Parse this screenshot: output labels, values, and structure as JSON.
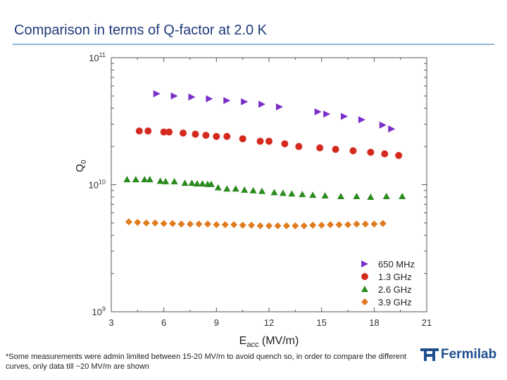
{
  "slide": {
    "title": "Comparison in terms of Q-factor at 2.0 K",
    "footnote": "*Some measurements were admin limited between 15-20 MV/m to avoid quench so, in order to compare the different curves, only data till ~20 MV/m are shown",
    "logo_text": "Fermilab",
    "logo_icon": "fermilab-logo-icon",
    "title_color": "#1f3a7a",
    "rule_color": "#8fb5d6"
  },
  "chart_data": {
    "type": "scatter",
    "title": "",
    "xlabel_main": "E",
    "xlabel_sub": "acc",
    "xlabel_unit": " (MV/m)",
    "ylabel_main": "Q",
    "ylabel_sub": "0",
    "xlim": [
      3,
      21
    ],
    "ylim": [
      1000000000.0,
      100000000000.0
    ],
    "yscale": "log",
    "x_ticks": [
      "3",
      "6",
      "9",
      "12",
      "15",
      "18",
      "21"
    ],
    "y_ticks": [
      {
        "base": "10",
        "exp": "9",
        "value": 1000000000.0
      },
      {
        "base": "10",
        "exp": "10",
        "value": 10000000000.0
      },
      {
        "base": "10",
        "exp": "11",
        "value": 100000000000.0
      }
    ],
    "grid": false,
    "legend_position": "bottom-right",
    "series": [
      {
        "name": "650 MHz",
        "marker": "triangle-right",
        "color": "#7b2fc9",
        "points": [
          [
            5.6,
            52000000000.0
          ],
          [
            6.6,
            50000000000.0
          ],
          [
            7.6,
            49000000000.0
          ],
          [
            8.6,
            47500000000.0
          ],
          [
            9.6,
            46000000000.0
          ],
          [
            10.6,
            45000000000.0
          ],
          [
            11.6,
            43000000000.0
          ],
          [
            12.6,
            41000000000.0
          ],
          [
            14.8,
            37500000000.0
          ],
          [
            15.3,
            36000000000.0
          ],
          [
            16.3,
            34500000000.0
          ],
          [
            17.3,
            32500000000.0
          ],
          [
            18.5,
            29500000000.0
          ],
          [
            19.0,
            27500000000.0
          ]
        ]
      },
      {
        "name": "1.3 GHz",
        "marker": "circle",
        "color": "#d42a1e",
        "points": [
          [
            4.6,
            26500000000.0
          ],
          [
            5.1,
            26500000000.0
          ],
          [
            6.0,
            26000000000.0
          ],
          [
            6.3,
            26000000000.0
          ],
          [
            7.1,
            25500000000.0
          ],
          [
            7.8,
            25000000000.0
          ],
          [
            8.4,
            24500000000.0
          ],
          [
            9.0,
            24000000000.0
          ],
          [
            9.6,
            24000000000.0
          ],
          [
            10.5,
            23000000000.0
          ],
          [
            11.5,
            22000000000.0
          ],
          [
            12.0,
            22000000000.0
          ],
          [
            12.9,
            21000000000.0
          ],
          [
            13.7,
            20000000000.0
          ],
          [
            14.9,
            19500000000.0
          ],
          [
            15.8,
            19000000000.0
          ],
          [
            16.8,
            18500000000.0
          ],
          [
            17.8,
            18000000000.0
          ],
          [
            18.6,
            17500000000.0
          ],
          [
            19.4,
            17000000000.0
          ]
        ]
      },
      {
        "name": "2.6 GHz",
        "marker": "triangle-up",
        "color": "#2a8a1e",
        "points": [
          [
            3.9,
            11000000000.0
          ],
          [
            4.4,
            11000000000.0
          ],
          [
            4.9,
            11000000000.0
          ],
          [
            5.2,
            11000000000.0
          ],
          [
            5.8,
            10700000000.0
          ],
          [
            6.1,
            10600000000.0
          ],
          [
            6.6,
            10600000000.0
          ],
          [
            7.2,
            10300000000.0
          ],
          [
            7.6,
            10300000000.0
          ],
          [
            7.9,
            10200000000.0
          ],
          [
            8.2,
            10200000000.0
          ],
          [
            8.5,
            10100000000.0
          ],
          [
            8.7,
            10100000000.0
          ],
          [
            9.1,
            9500000000.0
          ],
          [
            9.6,
            9300000000.0
          ],
          [
            10.1,
            9300000000.0
          ],
          [
            10.6,
            9100000000.0
          ],
          [
            11.1,
            9000000000.0
          ],
          [
            11.6,
            8900000000.0
          ],
          [
            12.3,
            8700000000.0
          ],
          [
            12.8,
            8600000000.0
          ],
          [
            13.3,
            8500000000.0
          ],
          [
            13.9,
            8400000000.0
          ],
          [
            14.5,
            8300000000.0
          ],
          [
            15.2,
            8200000000.0
          ],
          [
            16.1,
            8100000000.0
          ],
          [
            17.0,
            8100000000.0
          ],
          [
            17.8,
            8000000000.0
          ],
          [
            18.7,
            8100000000.0
          ],
          [
            19.6,
            8100000000.0
          ]
        ]
      },
      {
        "name": "3.9 GHz",
        "marker": "diamond",
        "color": "#e07b1e",
        "points": [
          [
            4.0,
            5100000000.0
          ],
          [
            4.5,
            5050000000.0
          ],
          [
            5.0,
            5000000000.0
          ],
          [
            5.5,
            5000000000.0
          ],
          [
            6.0,
            4950000000.0
          ],
          [
            6.5,
            4950000000.0
          ],
          [
            7.0,
            4900000000.0
          ],
          [
            7.5,
            4900000000.0
          ],
          [
            8.0,
            4900000000.0
          ],
          [
            8.5,
            4900000000.0
          ],
          [
            9.0,
            4850000000.0
          ],
          [
            9.5,
            4850000000.0
          ],
          [
            10.0,
            4850000000.0
          ],
          [
            10.5,
            4800000000.0
          ],
          [
            11.0,
            4800000000.0
          ],
          [
            11.5,
            4750000000.0
          ],
          [
            12.0,
            4750000000.0
          ],
          [
            12.5,
            4750000000.0
          ],
          [
            13.0,
            4750000000.0
          ],
          [
            13.5,
            4750000000.0
          ],
          [
            14.0,
            4750000000.0
          ],
          [
            14.5,
            4800000000.0
          ],
          [
            15.0,
            4800000000.0
          ],
          [
            15.5,
            4850000000.0
          ],
          [
            16.0,
            4850000000.0
          ],
          [
            16.5,
            4850000000.0
          ],
          [
            17.0,
            4900000000.0
          ],
          [
            17.5,
            4900000000.0
          ],
          [
            18.0,
            4900000000.0
          ],
          [
            18.5,
            4950000000.0
          ]
        ]
      }
    ]
  }
}
